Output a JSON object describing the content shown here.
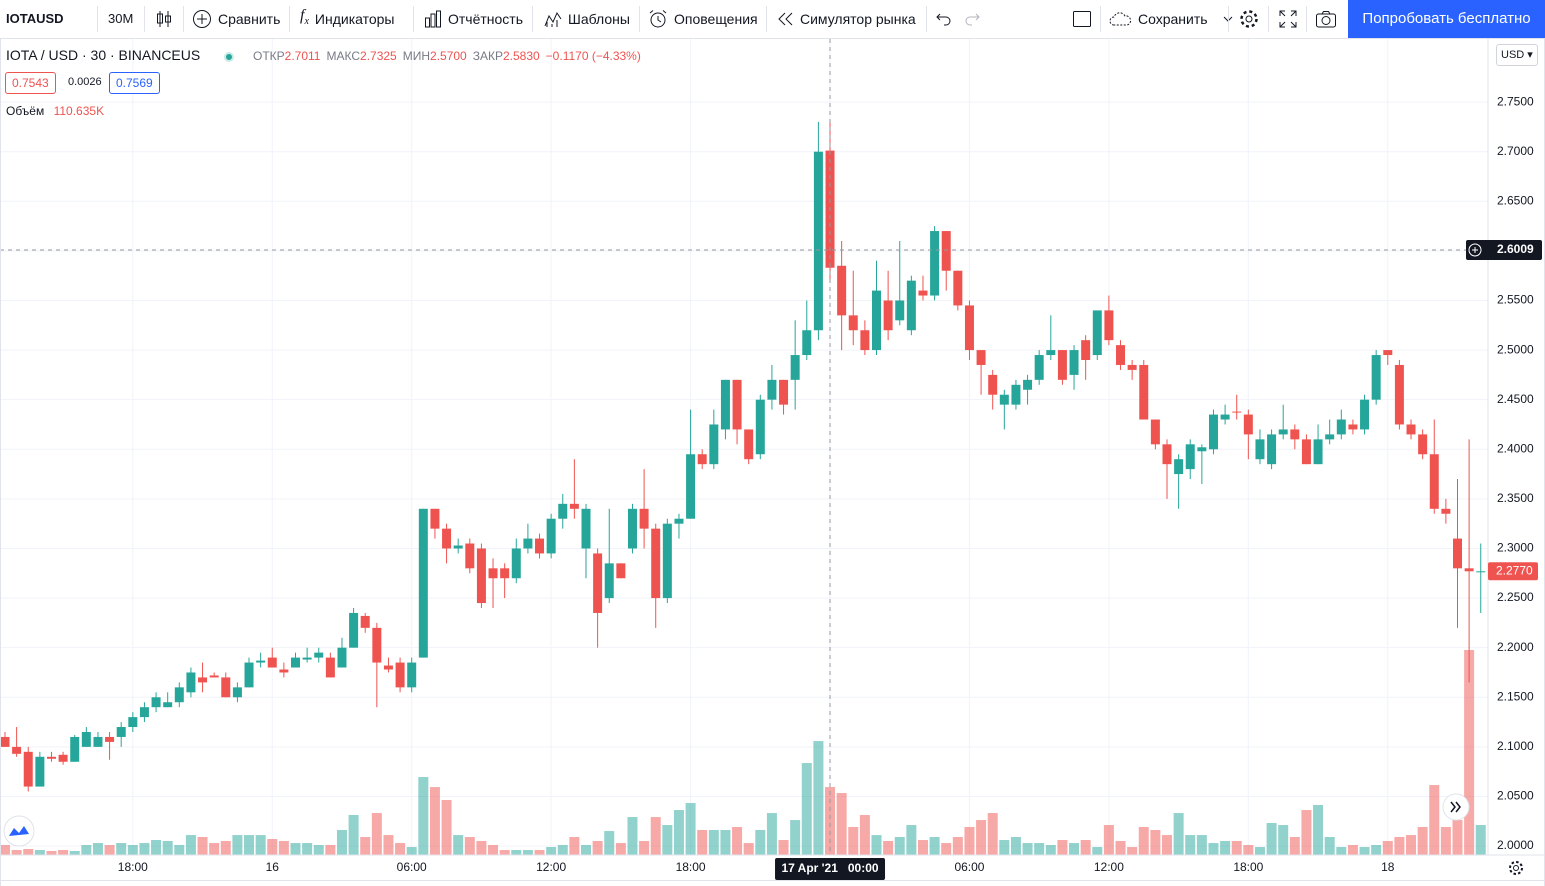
{
  "toolbar": {
    "symbol": "IOTAUSD",
    "interval": "30M",
    "items": [
      "Сравнить",
      "Индикаторы",
      "Отчётность",
      "Шаблоны",
      "Оповещения",
      "Симулятор рынка"
    ],
    "save": "Сохранить",
    "cta": "Попробовать бесплатно"
  },
  "legend": {
    "title": "IOTA / USD · 30 · BINANCEUS",
    "fields": [
      {
        "name": "ОТКР",
        "value": "2.7011"
      },
      {
        "name": "МАКС",
        "value": "2.7325"
      },
      {
        "name": "МИН",
        "value": "2.5700"
      },
      {
        "name": "ЗАКР",
        "value": "2.5830"
      }
    ],
    "change": "−0.1170 (−4.33%)",
    "bid": "0.7543",
    "spread": "0.0026",
    "ask": "0.7569",
    "volume": {
      "name": "Объём",
      "value": "110.635K"
    }
  },
  "currency": "USD",
  "chart_data": {
    "type": "candlestick",
    "categories": [
      null,
      null,
      null,
      null,
      null,
      null,
      null,
      null,
      null,
      null,
      null,
      "18:00",
      null,
      null,
      null,
      null,
      null,
      null,
      null,
      null,
      null,
      null,
      null,
      "16",
      null,
      null,
      null,
      null,
      null,
      null,
      null,
      null,
      null,
      null,
      null,
      "06:00",
      null,
      null,
      null,
      null,
      null,
      null,
      null,
      null,
      null,
      null,
      null,
      "12:00",
      null,
      null,
      null,
      null,
      null,
      null,
      null,
      null,
      null,
      null,
      null,
      "18:00",
      null,
      null,
      null,
      null,
      null,
      null,
      null,
      null,
      null,
      null,
      null,
      "17 Apr '21   00:00",
      null,
      null,
      null,
      null,
      null,
      null,
      null,
      null,
      null,
      null,
      null,
      "06:00",
      null,
      null,
      null,
      null,
      null,
      null,
      null,
      null,
      null,
      null,
      null,
      "12:00",
      null,
      null,
      null,
      null,
      null,
      null,
      null,
      null,
      null,
      null,
      null,
      "18:00",
      null,
      null,
      null,
      null,
      null,
      null,
      null,
      null,
      null,
      null,
      null,
      "18",
      null,
      null,
      null,
      null,
      null,
      null,
      null,
      null
    ],
    "open": [
      2.11,
      2.1,
      2.095,
      2.06,
      2.09,
      2.092,
      2.085,
      2.1,
      2.1,
      2.11,
      2.11,
      2.12,
      2.13,
      2.14,
      2.14,
      2.145,
      2.155,
      2.17,
      2.172,
      2.17,
      2.15,
      2.16,
      2.185,
      2.19,
      2.178,
      2.18,
      2.188,
      2.19,
      2.19,
      2.18,
      2.2,
      2.232,
      2.22,
      2.182,
      2.185,
      2.16,
      2.19,
      2.34,
      2.32,
      2.3,
      2.305,
      2.3,
      2.28,
      2.28,
      2.27,
      2.3,
      2.31,
      2.295,
      2.33,
      2.345,
      2.3,
      2.295,
      2.25,
      2.285,
      2.3,
      2.34,
      2.32,
      2.25,
      2.325,
      2.33,
      2.395,
      2.385,
      2.42,
      2.47,
      2.42,
      2.395,
      2.45,
      2.47,
      2.47,
      2.495,
      2.52,
      2.7011,
      2.585,
      2.535,
      2.52,
      2.5,
      2.55,
      2.53,
      2.52,
      2.56,
      2.555,
      2.62,
      2.58,
      2.545,
      2.5,
      2.475,
      2.445,
      2.445,
      2.46,
      2.47,
      2.495,
      2.5,
      2.475,
      2.51,
      2.495,
      2.54,
      2.505,
      2.485,
      2.485,
      2.43,
      2.405,
      2.375,
      2.38,
      2.398,
      2.4,
      2.43,
      2.438,
      2.435,
      2.39,
      2.385,
      2.415,
      2.42,
      2.41,
      2.385,
      2.41,
      2.415,
      2.425,
      2.42,
      2.45,
      2.5,
      2.485,
      2.425,
      2.415,
      2.395,
      2.34,
      2.31,
      2.28,
      2.277
    ],
    "high": [
      2.115,
      2.12,
      2.1,
      2.095,
      2.095,
      2.095,
      2.112,
      2.12,
      2.115,
      2.115,
      2.125,
      2.135,
      2.145,
      2.155,
      2.155,
      2.165,
      2.18,
      2.185,
      2.175,
      2.175,
      2.165,
      2.19,
      2.195,
      2.2,
      2.185,
      2.195,
      2.2,
      2.2,
      2.195,
      2.21,
      2.24,
      2.235,
      2.225,
      2.19,
      2.19,
      2.19,
      2.34,
      2.34,
      2.325,
      2.31,
      2.31,
      2.305,
      2.29,
      2.285,
      2.31,
      2.325,
      2.315,
      2.335,
      2.355,
      2.39,
      2.345,
      2.3,
      2.34,
      2.285,
      2.345,
      2.38,
      2.325,
      2.33,
      2.335,
      2.44,
      2.4,
      2.44,
      2.47,
      2.47,
      2.42,
      2.455,
      2.485,
      2.47,
      2.53,
      2.55,
      2.73,
      2.7325,
      2.61,
      2.58,
      2.53,
      2.59,
      2.58,
      2.61,
      2.575,
      2.575,
      2.625,
      2.62,
      2.58,
      2.55,
      2.5,
      2.48,
      2.46,
      2.47,
      2.475,
      2.5,
      2.535,
      2.5,
      2.505,
      2.515,
      2.54,
      2.555,
      2.51,
      2.49,
      2.49,
      2.43,
      2.41,
      2.395,
      2.41,
      2.405,
      2.44,
      2.445,
      2.455,
      2.44,
      2.42,
      2.42,
      2.445,
      2.425,
      2.415,
      2.425,
      2.43,
      2.44,
      2.43,
      2.455,
      2.5,
      2.5,
      2.49,
      2.43,
      2.42,
      2.43,
      2.35,
      2.37,
      2.41,
      2.305
    ],
    "low": [
      2.1,
      2.09,
      2.055,
      2.06,
      2.085,
      2.082,
      2.085,
      2.1,
      2.1,
      2.087,
      2.1,
      2.115,
      2.125,
      2.135,
      2.14,
      2.14,
      2.15,
      2.155,
      2.17,
      2.15,
      2.145,
      2.16,
      2.18,
      2.18,
      2.17,
      2.18,
      2.185,
      2.185,
      2.17,
      2.18,
      2.2,
      2.215,
      2.14,
      2.175,
      2.155,
      2.155,
      2.19,
      2.31,
      2.285,
      2.295,
      2.275,
      2.24,
      2.24,
      2.25,
      2.265,
      2.295,
      2.29,
      2.29,
      2.32,
      2.33,
      2.27,
      2.2,
      2.245,
      2.27,
      2.295,
      2.3,
      2.22,
      2.245,
      2.31,
      2.33,
      2.38,
      2.38,
      2.41,
      2.405,
      2.385,
      2.39,
      2.44,
      2.435,
      2.44,
      2.49,
      2.51,
      2.57,
      2.5,
      2.505,
      2.495,
      2.495,
      2.51,
      2.525,
      2.515,
      2.55,
      2.55,
      2.56,
      2.54,
      2.49,
      2.455,
      2.44,
      2.42,
      2.44,
      2.445,
      2.465,
      2.49,
      2.465,
      2.46,
      2.47,
      2.49,
      2.505,
      2.48,
      2.47,
      2.43,
      2.4,
      2.35,
      2.34,
      2.37,
      2.365,
      2.395,
      2.425,
      2.43,
      2.39,
      2.385,
      2.38,
      2.41,
      2.4,
      2.385,
      2.385,
      2.405,
      2.41,
      2.415,
      2.415,
      2.445,
      2.485,
      2.42,
      2.41,
      2.39,
      2.335,
      2.325,
      2.22,
      2.165,
      2.235
    ],
    "close": [
      2.1,
      2.093,
      2.06,
      2.09,
      2.088,
      2.085,
      2.11,
      2.115,
      2.11,
      2.105,
      2.12,
      2.13,
      2.14,
      2.15,
      2.145,
      2.16,
      2.175,
      2.165,
      2.17,
      2.15,
      2.16,
      2.185,
      2.187,
      2.18,
      2.175,
      2.19,
      2.19,
      2.195,
      2.17,
      2.2,
      2.235,
      2.22,
      2.185,
      2.178,
      2.16,
      2.185,
      2.34,
      2.32,
      2.3,
      2.303,
      2.28,
      2.245,
      2.27,
      2.27,
      2.3,
      2.31,
      2.295,
      2.33,
      2.345,
      2.34,
      2.34,
      2.235,
      2.285,
      2.27,
      2.34,
      2.32,
      2.25,
      2.325,
      2.33,
      2.395,
      2.385,
      2.425,
      2.47,
      2.42,
      2.39,
      2.45,
      2.47,
      2.445,
      2.495,
      2.52,
      2.7,
      2.583,
      2.535,
      2.52,
      2.5,
      2.56,
      2.52,
      2.55,
      2.57,
      2.555,
      2.62,
      2.58,
      2.545,
      2.5,
      2.485,
      2.455,
      2.455,
      2.465,
      2.47,
      2.495,
      2.5,
      2.47,
      2.5,
      2.49,
      2.54,
      2.51,
      2.485,
      2.48,
      2.43,
      2.405,
      2.385,
      2.39,
      2.405,
      2.402,
      2.435,
      2.435,
      2.437,
      2.415,
      2.41,
      2.415,
      2.42,
      2.41,
      2.385,
      2.41,
      2.415,
      2.43,
      2.42,
      2.45,
      2.495,
      2.495,
      2.425,
      2.415,
      2.395,
      2.34,
      2.335,
      2.28,
      2.277,
      2.277
    ],
    "volume": [
      16.3,
      8.1,
      9.8,
      8.1,
      6.5,
      8.1,
      6.5,
      16.3,
      19.5,
      16.3,
      19.5,
      16.3,
      19.5,
      24.4,
      22.8,
      16.3,
      32.5,
      29.3,
      19.5,
      22.8,
      32.5,
      32.5,
      32.5,
      26,
      22.8,
      19.5,
      19.5,
      16.3,
      16.3,
      40.7,
      65.1,
      29.3,
      68.3,
      32.5,
      19.5,
      13,
      126.9,
      110.6,
      89.5,
      32.5,
      29.3,
      22.8,
      16.3,
      8.1,
      8.1,
      8.1,
      8.1,
      13,
      16.3,
      29.3,
      16.3,
      22.8,
      39,
      19.5,
      61.8,
      22.8,
      61.8,
      48.8,
      73.2,
      84.6,
      40.7,
      40.7,
      40.7,
      45.6,
      19.5,
      40.7,
      68.3,
      24.4,
      56.9,
      149.7,
      185.5,
      110.635,
      100.9,
      45.6,
      65.1,
      32.5,
      22.8,
      29.3,
      48.8,
      24.4,
      29.3,
      19.5,
      29.3,
      45.6,
      56.9,
      68.3,
      24.4,
      29.3,
      19.5,
      19.5,
      16.3,
      24.4,
      19.5,
      24.4,
      13,
      48.8,
      22.8,
      13,
      45.6,
      40.7,
      32.5,
      68.3,
      32.5,
      32.5,
      19.5,
      22.8,
      22.8,
      16.3,
      13,
      52.1,
      48.8,
      29.3,
      73.2,
      81.4,
      29.3,
      13,
      16.3,
      13,
      16.3,
      22.8,
      29.3,
      32.5,
      45.6,
      113.9,
      45.6,
      56.9,
      333.7,
      48.8
    ],
    "up_color": "#26a69a",
    "down_color": "#ef5350",
    "ylim": [
      1.991,
      2.8136
    ],
    "yticks": [
      {
        "value": 2.0,
        "label": "2.0000"
      },
      {
        "value": 2.05,
        "label": "2.0500"
      },
      {
        "value": 2.1,
        "label": "2.1000"
      },
      {
        "value": 2.15,
        "label": "2.1500"
      },
      {
        "value": 2.2,
        "label": "2.2000"
      },
      {
        "value": 2.25,
        "label": "2.2500"
      },
      {
        "value": 2.3,
        "label": "2.3000"
      },
      {
        "value": 2.35,
        "label": "2.3500"
      },
      {
        "value": 2.4,
        "label": "2.4000"
      },
      {
        "value": 2.45,
        "label": "2.4500"
      },
      {
        "value": 2.5,
        "label": "2.5000"
      },
      {
        "value": 2.55,
        "label": "2.5500"
      },
      {
        "value": 2.6,
        "label": "2.6000"
      },
      {
        "value": 2.65,
        "label": "2.6500"
      },
      {
        "value": 2.7,
        "label": "2.7000"
      },
      {
        "value": 2.75,
        "label": "2.7500"
      }
    ],
    "grid": true,
    "crosshair_price": 2.6009,
    "crosshair_index": 71,
    "last_price": {
      "value": 2.277,
      "label": "2.2770"
    }
  }
}
